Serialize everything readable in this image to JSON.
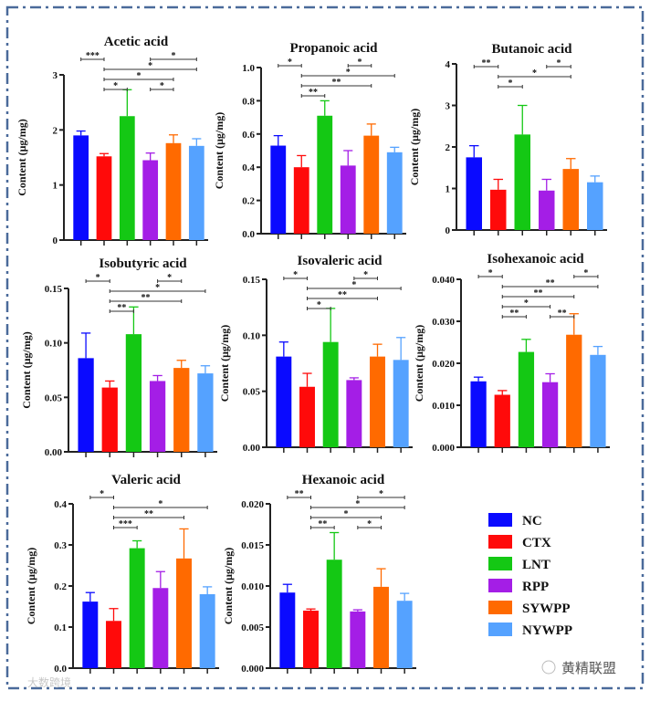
{
  "groups": [
    "NC",
    "CTX",
    "LNT",
    "RPP",
    "SYWPP",
    "NYWPP"
  ],
  "colors": {
    "NC": "#0a0aff",
    "CTX": "#ff0a0a",
    "LNT": "#14c814",
    "RPP": "#a41ee6",
    "SYWPP": "#ff6a00",
    "NYWPP": "#55a2ff",
    "border": "#4a6a9a"
  },
  "ylabel": "Content (μg/mg)",
  "legend": [
    "NC",
    "CTX",
    "LNT",
    "RPP",
    "SYWPP",
    "NYWPP"
  ],
  "watermarks": {
    "left": "大数跨境",
    "right": "黄精联盟"
  },
  "chart_data": [
    {
      "type": "bar",
      "title": "Acetic acid",
      "ylim": [
        0,
        3
      ],
      "ticks": [
        0,
        1,
        2,
        3
      ],
      "tick_labels": [
        "0",
        "1",
        "2",
        "3"
      ],
      "values": [
        1.9,
        1.52,
        2.25,
        1.45,
        1.76,
        1.71
      ],
      "errors": [
        0.08,
        0.05,
        0.48,
        0.13,
        0.15,
        0.13
      ],
      "significance": [
        {
          "from": "NC",
          "to": "CTX",
          "label": "***"
        },
        {
          "from": "CTX",
          "to": "NYWPP",
          "label": "*"
        },
        {
          "from": "CTX",
          "to": "SYWPP",
          "label": "*"
        },
        {
          "from": "RPP",
          "to": "NYWPP",
          "label": "*"
        },
        {
          "from": "CTX",
          "to": "LNT",
          "label": "*"
        },
        {
          "from": "RPP",
          "to": "SYWPP",
          "label": "*"
        }
      ]
    },
    {
      "type": "bar",
      "title": "Propanoic acid",
      "ylim": [
        0,
        1.0
      ],
      "ticks": [
        0,
        0.2,
        0.4,
        0.6,
        0.8,
        1.0
      ],
      "tick_labels": [
        "0.0",
        "0.2",
        "0.4",
        "0.6",
        "0.8",
        "1.0"
      ],
      "values": [
        0.53,
        0.4,
        0.71,
        0.41,
        0.59,
        0.49
      ],
      "errors": [
        0.06,
        0.07,
        0.09,
        0.09,
        0.07,
        0.03
      ],
      "significance": [
        {
          "from": "NC",
          "to": "CTX",
          "label": "*"
        },
        {
          "from": "CTX",
          "to": "NYWPP",
          "label": "*"
        },
        {
          "from": "CTX",
          "to": "SYWPP",
          "label": "**"
        },
        {
          "from": "CTX",
          "to": "LNT",
          "label": "**"
        },
        {
          "from": "RPP",
          "to": "SYWPP",
          "label": "*"
        }
      ]
    },
    {
      "type": "bar",
      "title": "Butanoic acid",
      "ylim": [
        0,
        4
      ],
      "ticks": [
        0,
        1,
        2,
        3,
        4
      ],
      "tick_labels": [
        "0",
        "1",
        "2",
        "3",
        "4"
      ],
      "values": [
        1.75,
        0.97,
        2.3,
        0.95,
        1.47,
        1.15
      ],
      "errors": [
        0.28,
        0.25,
        0.7,
        0.27,
        0.25,
        0.15
      ],
      "significance": [
        {
          "from": "NC",
          "to": "CTX",
          "label": "**"
        },
        {
          "from": "CTX",
          "to": "SYWPP",
          "label": "*"
        },
        {
          "from": "CTX",
          "to": "LNT",
          "label": "*"
        },
        {
          "from": "RPP",
          "to": "SYWPP",
          "label": "*"
        }
      ]
    },
    {
      "type": "bar",
      "title": "Isobutyric acid",
      "ylim": [
        0,
        0.15
      ],
      "ticks": [
        0,
        0.05,
        0.1,
        0.15
      ],
      "tick_labels": [
        "0.00",
        "0.05",
        "0.10",
        "0.15"
      ],
      "values": [
        0.086,
        0.059,
        0.108,
        0.065,
        0.077,
        0.072
      ],
      "errors": [
        0.023,
        0.006,
        0.025,
        0.005,
        0.007,
        0.007
      ],
      "significance": [
        {
          "from": "NC",
          "to": "CTX",
          "label": "*"
        },
        {
          "from": "CTX",
          "to": "NYWPP",
          "label": "*"
        },
        {
          "from": "CTX",
          "to": "SYWPP",
          "label": "**"
        },
        {
          "from": "CTX",
          "to": "LNT",
          "label": "**"
        },
        {
          "from": "RPP",
          "to": "SYWPP",
          "label": "*"
        }
      ]
    },
    {
      "type": "bar",
      "title": "Isovaleric acid",
      "ylim": [
        0,
        0.15
      ],
      "ticks": [
        0,
        0.05,
        0.1,
        0.15
      ],
      "tick_labels": [
        "0.00",
        "0.05",
        "0.10",
        "0.15"
      ],
      "values": [
        0.081,
        0.054,
        0.094,
        0.06,
        0.081,
        0.078
      ],
      "errors": [
        0.013,
        0.012,
        0.03,
        0.002,
        0.011,
        0.02
      ],
      "significance": [
        {
          "from": "NC",
          "to": "CTX",
          "label": "*"
        },
        {
          "from": "CTX",
          "to": "NYWPP",
          "label": "*"
        },
        {
          "from": "CTX",
          "to": "SYWPP",
          "label": "**"
        },
        {
          "from": "CTX",
          "to": "LNT",
          "label": "*"
        },
        {
          "from": "RPP",
          "to": "SYWPP",
          "label": "*"
        }
      ]
    },
    {
      "type": "bar",
      "title": "Isohexanoic acid",
      "ylim": [
        0,
        0.04
      ],
      "ticks": [
        0,
        0.01,
        0.02,
        0.03,
        0.04
      ],
      "tick_labels": [
        "0.000",
        "0.010",
        "0.020",
        "0.030",
        "0.040"
      ],
      "values": [
        0.0157,
        0.0125,
        0.0227,
        0.0155,
        0.0268,
        0.022
      ],
      "errors": [
        0.001,
        0.001,
        0.003,
        0.002,
        0.005,
        0.002
      ],
      "significance": [
        {
          "from": "NC",
          "to": "CTX",
          "label": "*"
        },
        {
          "from": "CTX",
          "to": "NYWPP",
          "label": "**"
        },
        {
          "from": "CTX",
          "to": "SYWPP",
          "label": "**"
        },
        {
          "from": "CTX",
          "to": "RPP",
          "label": "*"
        },
        {
          "from": "SYWPP",
          "to": "NYWPP",
          "label": "*"
        },
        {
          "from": "CTX",
          "to": "LNT",
          "label": "**"
        },
        {
          "from": "RPP",
          "to": "SYWPP",
          "label": "**"
        }
      ]
    },
    {
      "type": "bar",
      "title": "Valeric acid",
      "ylim": [
        0,
        0.4
      ],
      "ticks": [
        0,
        0.1,
        0.2,
        0.3,
        0.4
      ],
      "tick_labels": [
        "0.0",
        "0.1",
        "0.2",
        "0.3",
        "0.4"
      ],
      "values": [
        0.162,
        0.115,
        0.292,
        0.195,
        0.267,
        0.18
      ],
      "errors": [
        0.022,
        0.03,
        0.018,
        0.04,
        0.072,
        0.018
      ],
      "significance": [
        {
          "from": "NC",
          "to": "CTX",
          "label": "*"
        },
        {
          "from": "CTX",
          "to": "NYWPP",
          "label": "*"
        },
        {
          "from": "CTX",
          "to": "SYWPP",
          "label": "**"
        },
        {
          "from": "CTX",
          "to": "LNT",
          "label": "***"
        }
      ]
    },
    {
      "type": "bar",
      "title": "Hexanoic acid",
      "ylim": [
        0,
        0.02
      ],
      "ticks": [
        0,
        0.005,
        0.01,
        0.015,
        0.02
      ],
      "tick_labels": [
        "0.000",
        "0.005",
        "0.010",
        "0.015",
        "0.020"
      ],
      "values": [
        0.0092,
        0.007,
        0.0132,
        0.0069,
        0.0099,
        0.0082
      ],
      "errors": [
        0.001,
        0.0002,
        0.0033,
        0.0002,
        0.0022,
        0.0009
      ],
      "significance": [
        {
          "from": "NC",
          "to": "CTX",
          "label": "**"
        },
        {
          "from": "CTX",
          "to": "NYWPP",
          "label": "*"
        },
        {
          "from": "CTX",
          "to": "SYWPP",
          "label": "*"
        },
        {
          "from": "RPP",
          "to": "NYWPP",
          "label": "*"
        },
        {
          "from": "CTX",
          "to": "LNT",
          "label": "**"
        },
        {
          "from": "RPP",
          "to": "SYWPP",
          "label": "*"
        }
      ]
    }
  ]
}
